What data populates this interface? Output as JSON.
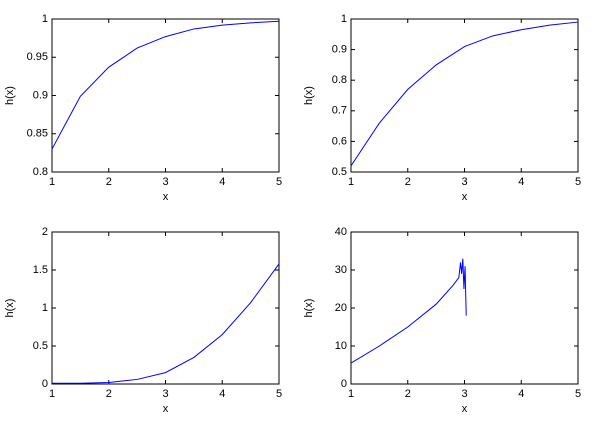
{
  "chart_data": [
    {
      "type": "line",
      "xlabel": "x",
      "ylabel": "h(x)",
      "x": [
        1,
        1.5,
        2,
        2.5,
        3,
        3.5,
        4,
        4.5,
        5
      ],
      "series": [
        {
          "color": "#0000ff",
          "values": [
            0.83,
            0.899,
            0.937,
            0.962,
            0.977,
            0.987,
            0.992,
            0.995,
            0.997
          ]
        }
      ],
      "xlim": [
        1,
        5
      ],
      "xticks": [
        1,
        2,
        3,
        4,
        5
      ],
      "ylim": [
        0.8,
        1
      ],
      "yticks": [
        0.8,
        0.85,
        0.9,
        0.95,
        1
      ]
    },
    {
      "type": "line",
      "xlabel": "x",
      "ylabel": "h(x)",
      "x": [
        1,
        1.5,
        2,
        2.5,
        3,
        3.5,
        4,
        4.5,
        5
      ],
      "series": [
        {
          "color": "#0000ff",
          "values": [
            0.52,
            0.66,
            0.77,
            0.85,
            0.91,
            0.945,
            0.965,
            0.98,
            0.99
          ]
        }
      ],
      "xlim": [
        1,
        5
      ],
      "xticks": [
        1,
        2,
        3,
        4,
        5
      ],
      "ylim": [
        0.5,
        1
      ],
      "yticks": [
        0.5,
        0.6,
        0.7,
        0.8,
        0.9,
        1
      ]
    },
    {
      "type": "line",
      "xlabel": "x",
      "ylabel": "h(x)",
      "x": [
        1,
        1.5,
        2,
        2.5,
        3,
        3.5,
        4,
        4.5,
        5
      ],
      "series": [
        {
          "color": "#0000ff",
          "values": [
            0.01,
            0.01,
            0.02,
            0.06,
            0.15,
            0.35,
            0.65,
            1.07,
            1.58
          ]
        }
      ],
      "xlim": [
        1,
        5
      ],
      "xticks": [
        1,
        2,
        3,
        4,
        5
      ],
      "ylim": [
        0,
        2
      ],
      "yticks": [
        0,
        0.5,
        1,
        1.5,
        2
      ]
    },
    {
      "type": "line",
      "xlabel": "x",
      "ylabel": "h(x)",
      "x": [
        1,
        1.5,
        2,
        2.5,
        2.8,
        2.9,
        2.93,
        2.95,
        2.97,
        2.99,
        3.01,
        3.03
      ],
      "series": [
        {
          "color": "#0000ff",
          "values": [
            5.5,
            10,
            15,
            21,
            26,
            28,
            32,
            29,
            33,
            25,
            31,
            18
          ]
        }
      ],
      "xlim": [
        1,
        5
      ],
      "xticks": [
        1,
        2,
        3,
        4,
        5
      ],
      "ylim": [
        0,
        40
      ],
      "yticks": [
        0,
        10,
        20,
        30,
        40
      ]
    }
  ]
}
